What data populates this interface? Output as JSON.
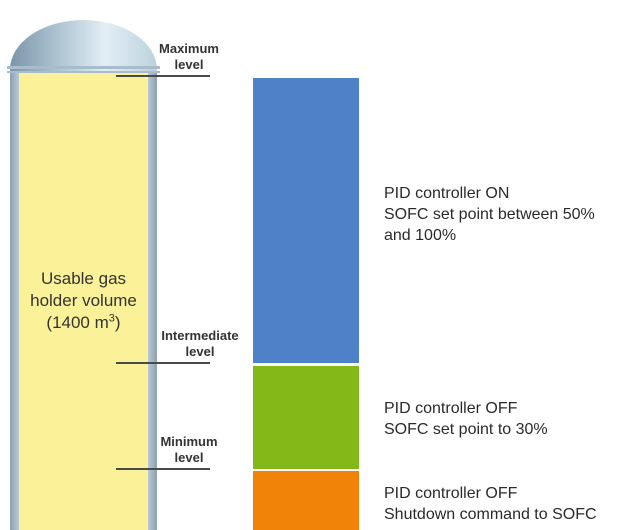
{
  "holder": {
    "volume_label_line1": "Usable gas",
    "volume_label_line2": "holder volume",
    "volume_label_line3_prefix": "(1400 m",
    "volume_label_superscript": "3",
    "volume_label_line3_suffix": ")"
  },
  "levels": {
    "maximum": {
      "line1": "Maximum",
      "line2": "level"
    },
    "intermediate": {
      "line1": "Intermediate",
      "line2": "level"
    },
    "minimum": {
      "line1": "Minimum",
      "line2": "level"
    }
  },
  "bands": {
    "upper": {
      "color": "#4f81c8",
      "line1": "PID controller ON",
      "line2": "SOFC set point between 50%",
      "line3": "and 100%"
    },
    "middle": {
      "color": "#82b817",
      "line1": "PID controller OFF",
      "line2": "SOFC set point to 30%"
    },
    "lower": {
      "color": "#f08308",
      "line1": "PID controller OFF",
      "line2": "Shutdown command to SOFC"
    }
  }
}
